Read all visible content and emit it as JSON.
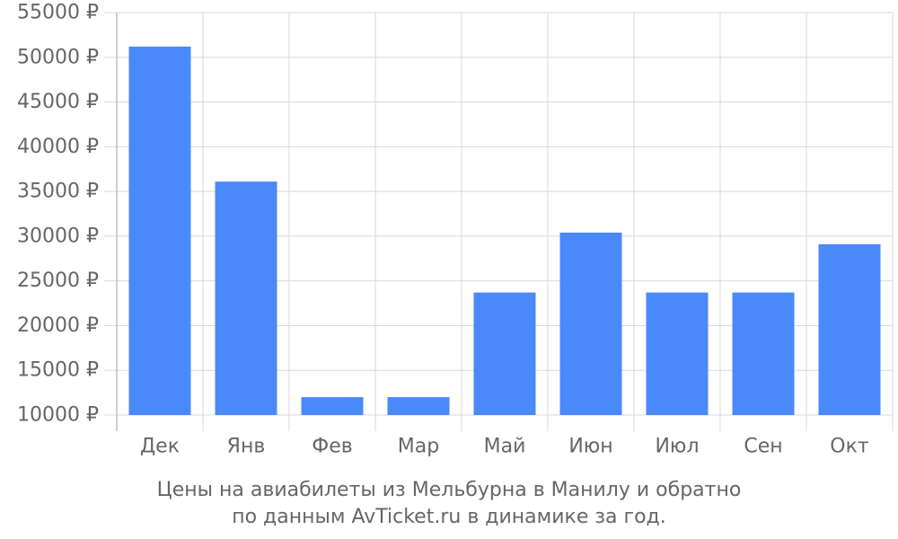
{
  "chart_data": {
    "type": "bar",
    "categories": [
      "Дек",
      "Янв",
      "Фев",
      "Мар",
      "Май",
      "Июн",
      "Июл",
      "Сен",
      "Окт"
    ],
    "values": [
      51200,
      36100,
      12000,
      12000,
      23700,
      30400,
      23700,
      23700,
      29100
    ],
    "ylim": [
      10000,
      55000
    ],
    "yticks": [
      10000,
      15000,
      20000,
      25000,
      30000,
      35000,
      40000,
      45000,
      50000,
      55000
    ],
    "ytick_labels": [
      "10000 ₽",
      "15000 ₽",
      "20000 ₽",
      "25000 ₽",
      "30000 ₽",
      "35000 ₽",
      "40000 ₽",
      "45000 ₽",
      "50000 ₽",
      "55000 ₽"
    ],
    "grid": true,
    "bar_color": "#4a89fa",
    "grid_color": "#d9d9d9"
  },
  "caption": {
    "line1": "Цены на авиабилеты из Мельбурна в Манилу и обратно",
    "line2": "по данным AvTicket.ru в динамике за год."
  }
}
